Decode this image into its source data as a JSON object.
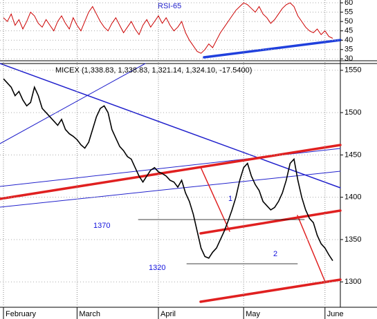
{
  "chart_data": [
    {
      "type": "line",
      "title": "RSI-65",
      "series": [
        {
          "name": "RSI",
          "color": "#cc0000",
          "values": [
            52,
            50,
            54,
            48,
            51,
            46,
            50,
            55,
            53,
            49,
            47,
            51,
            48,
            45,
            50,
            53,
            49,
            46,
            52,
            48,
            45,
            50,
            55,
            58,
            54,
            50,
            47,
            45,
            49,
            52,
            48,
            44,
            47,
            50,
            46,
            43,
            48,
            51,
            47,
            50,
            53,
            49,
            52,
            48,
            45,
            47,
            50,
            44,
            40,
            37,
            34,
            33,
            35,
            38,
            36,
            40,
            44,
            47,
            50,
            53,
            56,
            58,
            60,
            59,
            57,
            55,
            58,
            54,
            52,
            49,
            51,
            54,
            57,
            59,
            60,
            58,
            53,
            50,
            47,
            45,
            44,
            46,
            43,
            45,
            42,
            41
          ]
        }
      ],
      "ylim": [
        29,
        61.5
      ],
      "yticks": [
        30,
        35,
        40,
        45,
        50,
        55,
        60
      ]
    },
    {
      "type": "line",
      "title": "MICEX (1,338.83, 1,338.83, 1,321.14, 1,324.10, -17.5400)",
      "categories": [
        "February",
        null,
        null,
        null,
        null,
        null,
        null,
        null,
        null,
        null,
        null,
        null,
        null,
        null,
        null,
        null,
        null,
        null,
        null,
        "March",
        null,
        null,
        null,
        null,
        null,
        null,
        null,
        null,
        null,
        null,
        null,
        null,
        null,
        null,
        null,
        null,
        null,
        null,
        null,
        null,
        "April",
        null,
        null,
        null,
        null,
        null,
        null,
        null,
        null,
        null,
        null,
        null,
        null,
        null,
        null,
        null,
        null,
        null,
        null,
        null,
        null,
        null,
        "May",
        null,
        null,
        null,
        null,
        null,
        null,
        null,
        null,
        null,
        null,
        null,
        null,
        null,
        null,
        null,
        null,
        null,
        null,
        null,
        null,
        "June",
        null,
        null
      ],
      "series": [
        {
          "name": "MICEX",
          "color": "#000000",
          "values": [
            1540,
            1535,
            1530,
            1520,
            1525,
            1515,
            1508,
            1512,
            1530,
            1520,
            1505,
            1500,
            1495,
            1490,
            1485,
            1492,
            1480,
            1475,
            1472,
            1468,
            1462,
            1458,
            1465,
            1480,
            1495,
            1505,
            1508,
            1500,
            1480,
            1470,
            1460,
            1455,
            1448,
            1445,
            1435,
            1425,
            1418,
            1425,
            1432,
            1435,
            1430,
            1428,
            1425,
            1420,
            1418,
            1412,
            1420,
            1405,
            1395,
            1380,
            1360,
            1340,
            1330,
            1328,
            1335,
            1340,
            1350,
            1360,
            1372,
            1385,
            1400,
            1420,
            1435,
            1440,
            1425,
            1415,
            1408,
            1395,
            1390,
            1385,
            1388,
            1395,
            1405,
            1420,
            1440,
            1445,
            1420,
            1400,
            1385,
            1375,
            1370,
            1355,
            1345,
            1340,
            1332,
            1325
          ]
        }
      ],
      "ylim": [
        1270,
        1558
      ],
      "yticks": [
        1300,
        1350,
        1400,
        1450,
        1500,
        1550
      ],
      "annotations": [
        "1370",
        "1320",
        "1",
        "2"
      ]
    }
  ]
}
